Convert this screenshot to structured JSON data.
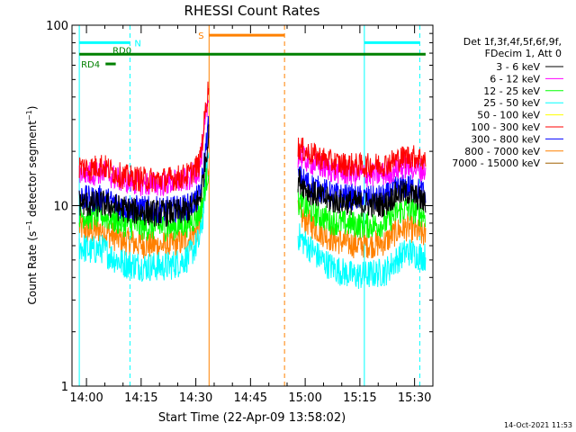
{
  "chart_data": {
    "type": "line",
    "title": "RHESSI Count Rates",
    "xlabel": "Start Time (22-Apr-09 13:58:02)",
    "ylabel": "Count Rate (s^-1 detector segment^-1)",
    "ylabel_main": "Count Rate (s",
    "ylabel_sup1": "−1",
    "ylabel_mid": " detector segment",
    "ylabel_sup2": "−1",
    "ylabel_end": ")",
    "yscale": "log",
    "ylim": [
      1,
      100
    ],
    "xlim_minutes_after_start": [
      -2.0,
      97.0
    ],
    "x_units": "minutes after 13:58:02",
    "yticks": [
      "1",
      "10",
      "100"
    ],
    "xticks": [
      {
        "t": 1.97,
        "label": "14:00"
      },
      {
        "t": 16.97,
        "label": "14:15"
      },
      {
        "t": 31.97,
        "label": "14:30"
      },
      {
        "t": 46.97,
        "label": "14:45"
      },
      {
        "t": 61.97,
        "label": "15:00"
      },
      {
        "t": 76.97,
        "label": "15:15"
      },
      {
        "t": 91.97,
        "label": "15:30"
      }
    ],
    "legend_header": [
      "Det 1f,3f,4f,5f,6f,9f,",
      "FDecim 1, Att 0"
    ],
    "legend_position": "top-right",
    "series": [
      {
        "name": "3 - 6 keV",
        "color": "#000000",
        "segments": [
          {
            "x": [
              0,
              3,
              6,
              9,
              12,
              15,
              18,
              21,
              24,
              27,
              30,
              33,
              34,
              35.5
            ],
            "y": [
              10.4,
              10.1,
              10.3,
              9.9,
              9.6,
              9.3,
              9.2,
              9.1,
              9.1,
              9.2,
              9.4,
              10.8,
              14,
              24
            ]
          },
          {
            "x": [
              60,
              63,
              66,
              69,
              72,
              75,
              78,
              81,
              84,
              87,
              90,
              93,
              95
            ],
            "y": [
              14,
              12,
              11.2,
              10.6,
              10.5,
              10.4,
              10.2,
              10.1,
              10.2,
              11.6,
              11.8,
              11.0,
              10.3
            ]
          }
        ]
      },
      {
        "name": "6 - 12 keV",
        "color": "#ff00ff",
        "segments": [
          {
            "x": [
              0,
              3,
              6,
              9,
              12,
              15,
              18,
              21,
              24,
              27,
              30,
              33,
              34,
              35.5
            ],
            "y": [
              15.5,
              15,
              15.5,
              14.5,
              13.8,
              13.5,
              13.2,
              13.2,
              13.3,
              13.5,
              14,
              16,
              22,
              40
            ]
          },
          {
            "x": [
              60,
              63,
              66,
              69,
              72,
              75,
              78,
              81,
              84,
              87,
              90,
              93,
              95
            ],
            "y": [
              19,
              17.5,
              16.5,
              15.8,
              15.2,
              15.0,
              14.8,
              14.8,
              15,
              16,
              16.5,
              16,
              15.5
            ]
          }
        ]
      },
      {
        "name": "12 - 25 keV",
        "color": "#00ff00",
        "segments": [
          {
            "x": [
              0,
              3,
              6,
              9,
              12,
              15,
              18,
              21,
              24,
              27,
              30,
              33,
              34,
              35.5
            ],
            "y": [
              9.0,
              8.7,
              8.9,
              8.4,
              8.0,
              7.8,
              7.6,
              7.6,
              7.6,
              7.7,
              8.0,
              9.0,
              11,
              16
            ]
          },
          {
            "x": [
              60,
              63,
              66,
              69,
              72,
              75,
              78,
              81,
              84,
              87,
              90,
              93,
              95
            ],
            "y": [
              10.5,
              9.5,
              8.8,
              8.2,
              8.0,
              7.9,
              7.8,
              7.8,
              8.0,
              9.2,
              9.6,
              9.2,
              8.8
            ]
          }
        ]
      },
      {
        "name": "25 - 50 keV",
        "color": "#00ffff",
        "segments": [
          {
            "x": [
              0,
              3,
              6,
              9,
              12,
              15,
              18,
              21,
              24,
              27,
              30,
              33,
              34,
              35.5
            ],
            "y": [
              6.0,
              5.6,
              5.8,
              5.2,
              4.8,
              4.7,
              4.6,
              4.6,
              4.6,
              4.8,
              5.2,
              6.4,
              9,
              20
            ]
          },
          {
            "x": [
              60,
              63,
              66,
              69,
              72,
              75,
              78,
              81,
              84,
              87,
              90,
              93,
              95
            ],
            "y": [
              6.8,
              5.9,
              5.1,
              4.6,
              4.3,
              4.1,
              4.1,
              4.2,
              4.3,
              5.0,
              5.6,
              5.3,
              5.2
            ]
          }
        ]
      },
      {
        "name": "50 - 100 keV",
        "color": "#ffff00",
        "segments": []
      },
      {
        "name": "100 - 300 keV",
        "color": "#ff0000",
        "segments": [
          {
            "x": [
              0,
              3,
              6,
              9,
              12,
              15,
              18,
              21,
              24,
              27,
              30,
              33,
              34,
              35.5
            ],
            "y": [
              16.5,
              16,
              16.8,
              15.5,
              14.5,
              14.2,
              14,
              13.9,
              14,
              14.3,
              14.8,
              17,
              25,
              46
            ]
          },
          {
            "x": [
              60,
              63,
              66,
              69,
              72,
              75,
              78,
              81,
              84,
              87,
              90,
              93,
              95
            ],
            "y": [
              21,
              19.5,
              18.5,
              17.5,
              17.0,
              16.8,
              16.6,
              16.8,
              17,
              18,
              18.8,
              18.5,
              17.8
            ]
          }
        ]
      },
      {
        "name": "300 - 800 keV",
        "color": "#0000ff",
        "segments": [
          {
            "x": [
              0,
              3,
              6,
              9,
              12,
              15,
              18,
              21,
              24,
              27,
              30,
              33,
              34,
              35.5
            ],
            "y": [
              11.2,
              10.8,
              11,
              10.4,
              9.9,
              9.7,
              9.6,
              9.5,
              9.5,
              9.6,
              9.9,
              11.2,
              15,
              28
            ]
          },
          {
            "x": [
              60,
              63,
              66,
              69,
              72,
              75,
              78,
              81,
              84,
              87,
              90,
              93,
              95
            ],
            "y": [
              14.5,
              13.2,
              12.3,
              11.6,
              11.3,
              11.1,
              11.0,
              11.0,
              11.2,
              12.4,
              12.8,
              12.2,
              11.6
            ]
          }
        ]
      },
      {
        "name": "800 - 7000 keV",
        "color": "#ff8000",
        "segments": [
          {
            "x": [
              0,
              3,
              6,
              9,
              12,
              15,
              18,
              21,
              24,
              27,
              30,
              33,
              34,
              35.5
            ],
            "y": [
              7.6,
              7.2,
              7.4,
              6.8,
              6.4,
              6.2,
              6.1,
              6.0,
              6.0,
              6.2,
              6.5,
              7.6,
              10,
              18
            ]
          },
          {
            "x": [
              60,
              63,
              66,
              69,
              72,
              75,
              78,
              81,
              84,
              87,
              90,
              93,
              95
            ],
            "y": [
              9.0,
              8.0,
              7.2,
              6.6,
              6.3,
              6.1,
              6.1,
              6.1,
              6.3,
              7.2,
              7.6,
              7.1,
              6.8
            ]
          }
        ]
      },
      {
        "name": "7000 - 15000 keV",
        "color": "#a06000",
        "segments": []
      }
    ],
    "annotations": {
      "night_shading": [
        {
          "label": "N",
          "start": 0,
          "end": 13.9,
          "color": "#00ffff",
          "bar_y": 80
        },
        {
          "label": "",
          "start": 78.2,
          "end": 93.4,
          "color": "#00ffff",
          "bar_y": 80
        }
      ],
      "saa_interval": {
        "label": "S",
        "start": 35.6,
        "end": 56.3,
        "color": "#ff8000",
        "bar_y": 88
      },
      "decimation_bar": {
        "label": "RD0",
        "start": 0,
        "end": 95,
        "color": "#008000",
        "y": 69
      },
      "decimation_bar_2": {
        "label": "RD4",
        "start": 7.2,
        "end": 10.0,
        "color": "#008000",
        "y": 61
      }
    },
    "timestamp": "14-Oct-2021 11:53"
  }
}
